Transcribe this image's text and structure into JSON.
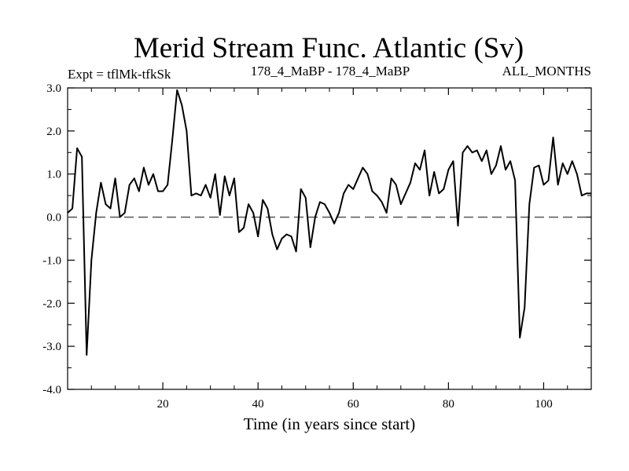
{
  "chart_data": {
    "type": "line",
    "title": "Merid Stream Func. Atlantic (Sv)",
    "subtitle_left": "Expt = tflMk-tfkSk",
    "subtitle_center": "178_4_MaBP - 178_4_MaBP",
    "subtitle_right": "ALL_MONTHS",
    "xlabel": "Time (in years since start)",
    "ylabel": "",
    "xlim": [
      0,
      110
    ],
    "ylim": [
      -4.0,
      3.0
    ],
    "x_ticks": [
      20,
      40,
      60,
      80,
      100
    ],
    "x_tick_labels": [
      "20",
      "40",
      "60",
      "80",
      "100"
    ],
    "y_ticks": [
      3.0,
      2.0,
      1.0,
      0.0,
      -1.0,
      -2.0,
      -3.0,
      -4.0
    ],
    "y_tick_labels": [
      "3.0",
      "2.0",
      "1.0",
      "0.0",
      "-1.0",
      "-2.0",
      "-3.0",
      "-4.0"
    ],
    "zero_line": 0.0,
    "series": [
      {
        "name": "Merid Stream Func. Atlantic",
        "x": [
          0,
          1,
          2,
          3,
          4,
          5,
          6,
          7,
          8,
          9,
          10,
          11,
          12,
          13,
          14,
          15,
          16,
          17,
          18,
          19,
          20,
          21,
          22,
          23,
          24,
          25,
          26,
          27,
          28,
          29,
          30,
          31,
          32,
          33,
          34,
          35,
          36,
          37,
          38,
          39,
          40,
          41,
          42,
          43,
          44,
          45,
          46,
          47,
          48,
          49,
          50,
          51,
          52,
          53,
          54,
          55,
          56,
          57,
          58,
          59,
          60,
          61,
          62,
          63,
          64,
          65,
          66,
          67,
          68,
          69,
          70,
          71,
          72,
          73,
          74,
          75,
          76,
          77,
          78,
          79,
          80,
          81,
          82,
          83,
          84,
          85,
          86,
          87,
          88,
          89,
          90,
          91,
          92,
          93,
          94,
          95,
          96,
          97,
          98,
          99,
          100,
          101,
          102,
          103,
          104,
          105,
          106,
          107,
          108,
          109,
          110
        ],
        "values": [
          0.1,
          0.2,
          1.6,
          1.4,
          -3.2,
          -1.0,
          0.1,
          0.8,
          0.3,
          0.2,
          0.9,
          0.0,
          0.1,
          0.75,
          0.9,
          0.6,
          1.15,
          0.75,
          1.0,
          0.6,
          0.6,
          0.75,
          1.8,
          2.95,
          2.6,
          2.0,
          0.5,
          0.55,
          0.5,
          0.75,
          0.45,
          1.0,
          0.05,
          0.95,
          0.5,
          0.9,
          -0.35,
          -0.25,
          0.3,
          0.1,
          -0.45,
          0.4,
          0.2,
          -0.4,
          -0.75,
          -0.5,
          -0.4,
          -0.45,
          -0.8,
          0.65,
          0.45,
          -0.7,
          0.0,
          0.35,
          0.3,
          0.1,
          -0.15,
          0.1,
          0.55,
          0.75,
          0.65,
          0.9,
          1.15,
          1.0,
          0.6,
          0.5,
          0.35,
          0.1,
          0.9,
          0.75,
          0.3,
          0.55,
          0.8,
          1.25,
          1.1,
          1.55,
          0.5,
          1.05,
          0.55,
          0.65,
          1.1,
          1.3,
          -0.2,
          1.5,
          1.65,
          1.5,
          1.55,
          1.3,
          1.55,
          1.0,
          1.2,
          1.65,
          1.1,
          1.3,
          0.85,
          -2.8,
          -2.1,
          0.3,
          1.15,
          1.2,
          0.75,
          0.85,
          1.85,
          0.75,
          1.25,
          1.0,
          1.3,
          1.0,
          0.5,
          0.55,
          0.55
        ]
      }
    ]
  }
}
